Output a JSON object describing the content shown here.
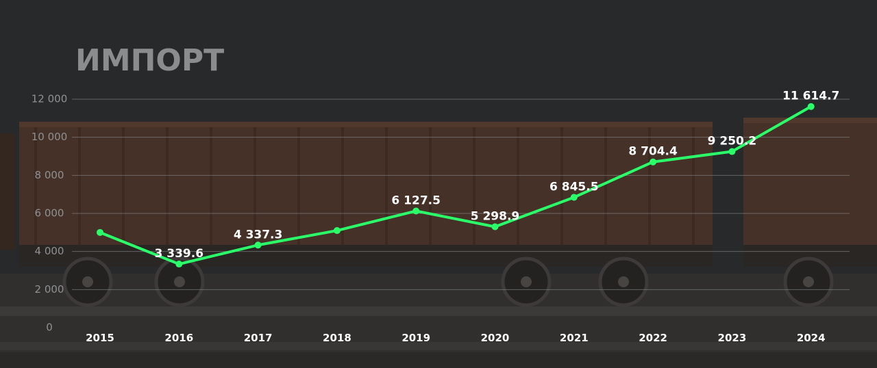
{
  "chart_data": {
    "type": "line",
    "title": "ИМПОРТ",
    "categories": [
      "2015",
      "2016",
      "2017",
      "2018",
      "2019",
      "2020",
      "2021",
      "2022",
      "2023",
      "2024"
    ],
    "series": [
      {
        "values": [
          5000,
          3339.6,
          4337.3,
          5100,
          6127.5,
          5298.9,
          6845.5,
          8704.4,
          9250.2,
          11614.7
        ],
        "data_labels": [
          "",
          "3 339.6",
          "4 337.3",
          "",
          "6 127.5",
          "5 298.9",
          "6 845.5",
          "8 704.4",
          "9 250.2",
          "11 614.7"
        ]
      }
    ],
    "yticks": [
      "0",
      "2 000",
      "4 000",
      "6 000",
      "8 000",
      "10 000",
      "12 000"
    ],
    "ylim": [
      0,
      12000
    ],
    "grid": true,
    "legend": "none"
  },
  "colors": {
    "line": "#2aff6a",
    "grid": "#8b8d8f",
    "background": "#2b2d2f",
    "wagon": "#5a3a2a"
  }
}
